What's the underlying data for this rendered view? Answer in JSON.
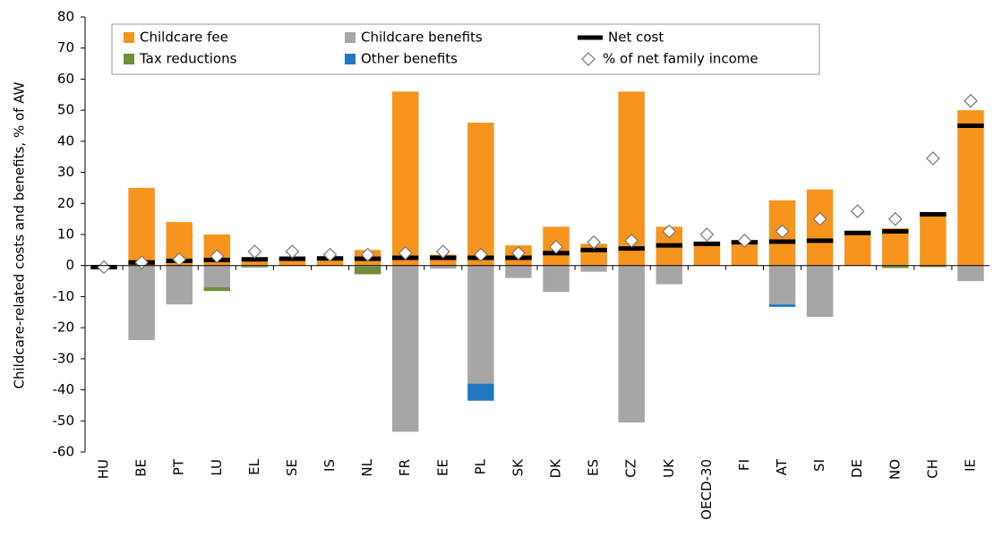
{
  "chart_data": {
    "type": "bar",
    "y_label": "Childcare-related costs and benefits, % of AW",
    "categories": [
      "HU",
      "BE",
      "PT",
      "LU",
      "EL",
      "SE",
      "IS",
      "NL",
      "FR",
      "EE",
      "PL",
      "SK",
      "DK",
      "ES",
      "CZ",
      "UK",
      "OECD-30",
      "FI",
      "AT",
      "SI",
      "DE",
      "NO",
      "CH",
      "IE"
    ],
    "series": [
      {
        "name": "Childcare fee",
        "color": "#f7941d",
        "values": [
          0,
          25,
          14,
          10,
          2.5,
          2.2,
          2.3,
          5,
          56,
          3.5,
          46,
          6.5,
          12.5,
          7,
          56,
          12.5,
          7.5,
          7.5,
          21,
          24.5,
          10.5,
          12,
          17,
          50
        ]
      },
      {
        "name": "Childcare benefits",
        "color": "#a6a6a6",
        "values": [
          0,
          -24,
          -12.5,
          -7,
          -0.3,
          0,
          0,
          -0.3,
          -53.5,
          -1,
          -38,
          -4,
          -8.5,
          -2,
          -50.5,
          -6,
          0,
          0,
          -12.5,
          -16.5,
          0,
          0,
          0,
          -5
        ]
      },
      {
        "name": "Tax reductions",
        "color": "#6f8f3a",
        "values": [
          0,
          0,
          0,
          -1.2,
          -0.3,
          0,
          0,
          -2.5,
          0,
          0,
          0,
          0,
          0,
          0,
          0,
          0,
          0,
          0,
          0,
          0,
          0,
          -0.8,
          -0.5,
          0
        ]
      },
      {
        "name": "Other benefits",
        "color": "#1f78c1",
        "values": [
          0,
          0,
          0,
          0,
          0,
          0,
          0,
          0,
          0,
          0,
          -5.5,
          0,
          0,
          0,
          0,
          0,
          0,
          0,
          -0.8,
          0,
          0,
          0,
          0,
          0
        ]
      }
    ],
    "net_cost": {
      "name": "Net cost",
      "color": "#000000",
      "values": [
        -0.5,
        1,
        1.5,
        1.8,
        2,
        2.2,
        2.3,
        2.2,
        2.5,
        2.5,
        2.5,
        2.5,
        4,
        5,
        5.5,
        6.5,
        7,
        7.5,
        7.7,
        8,
        10.5,
        11,
        16.5,
        45
      ]
    },
    "share": {
      "name": "% of net family income",
      "color": "#ffffff",
      "values": [
        -0.5,
        1,
        2,
        3,
        4.5,
        4.5,
        3.5,
        3.5,
        4,
        4.5,
        3.5,
        4,
        6,
        7.5,
        8,
        11,
        10,
        8,
        11,
        15,
        17.5,
        15,
        34.5,
        53
      ]
    },
    "ylim": [
      -60,
      80
    ],
    "yticks": [
      -60,
      -50,
      -40,
      -30,
      -20,
      -10,
      0,
      10,
      20,
      30,
      40,
      50,
      60,
      70,
      80
    ],
    "grid": false
  }
}
